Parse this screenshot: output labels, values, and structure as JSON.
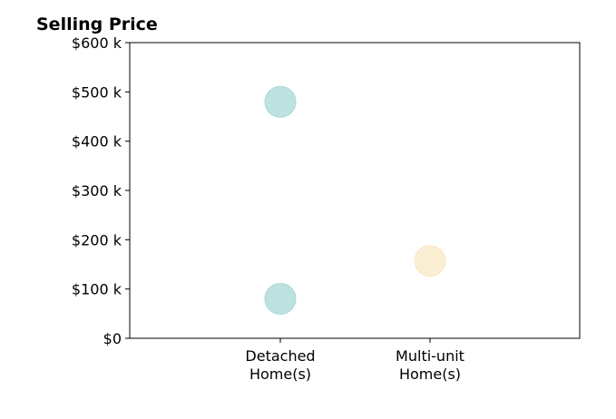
{
  "chart_data": {
    "type": "scatter",
    "title": "Selling Price",
    "xlabel": "",
    "ylabel": "",
    "categories": [
      "Detached\nHome(s)",
      "Multi-unit\nHome(s)"
    ],
    "ylim": [
      0,
      600000
    ],
    "yticks": [
      {
        "value": 0,
        "label": "$0"
      },
      {
        "value": 100000,
        "label": "$100 k"
      },
      {
        "value": 200000,
        "label": "$200 k"
      },
      {
        "value": 300000,
        "label": "$300 k"
      },
      {
        "value": 400000,
        "label": "$400 k"
      },
      {
        "value": 500000,
        "label": "$500 k"
      },
      {
        "value": 600000,
        "label": "$600 k"
      }
    ],
    "series": [
      {
        "category": "Detached\nHome(s)",
        "values": [
          480000,
          80000
        ],
        "color": "#a8d8d4"
      },
      {
        "category": "Multi-unit\nHome(s)",
        "values": [
          157000
        ],
        "color": "#f8e8c4"
      }
    ],
    "grid": false,
    "legend": "none"
  }
}
